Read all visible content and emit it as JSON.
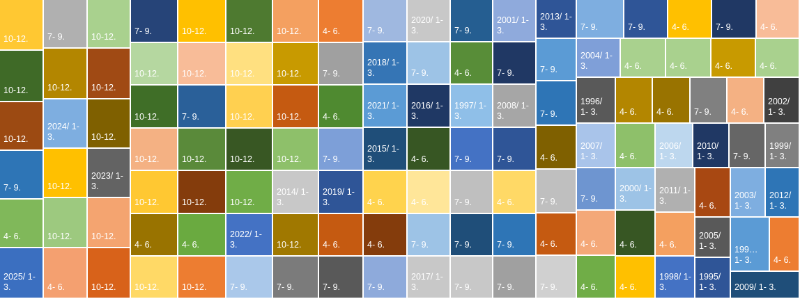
{
  "cells": [
    {
      "label": "10-12.",
      "color": "#ffc832"
    },
    {
      "label": "10-12.",
      "color": "#3f6a27"
    },
    {
      "label": "10-12.",
      "color": "#9c4a12"
    },
    {
      "label": "7- 9.",
      "color": "#2e75b6"
    },
    {
      "label": "4- 6.",
      "color": "#80b85a"
    },
    {
      "label": "2025/ 1- 3.",
      "color": "#3b6fc0"
    },
    {
      "label": "7- 9.",
      "color": "#b0b0b0"
    },
    {
      "label": "10-12.",
      "color": "#b38600"
    },
    {
      "label": "2024/ 1- 3.",
      "color": "#7eaee0"
    },
    {
      "label": "10-12.",
      "color": "#ffc000"
    },
    {
      "label": "10-12.",
      "color": "#9dc97f"
    },
    {
      "label": "4- 6.",
      "color": "#f4a070"
    },
    {
      "label": "10-12.",
      "color": "#a9d18e"
    },
    {
      "label": "10-12.",
      "color": "#a04a14"
    },
    {
      "label": "10-12.",
      "color": "#7f6000"
    },
    {
      "label": "2023/ 1- 3.",
      "color": "#636363"
    },
    {
      "label": "10-12.",
      "color": "#f4a470"
    },
    {
      "label": "10-12.",
      "color": "#d8621a"
    },
    {
      "label": "7- 9.",
      "color": "#264478"
    },
    {
      "label": "10-12.",
      "color": "#ffc000"
    },
    {
      "label": "10-12.",
      "color": "#4e7a30"
    },
    {
      "label": "10-12.",
      "color": "#f4a060"
    },
    {
      "label": "4- 6.",
      "color": "#ed7d31"
    },
    {
      "label": "10-12.",
      "color": "#b5d7a0"
    },
    {
      "label": "10-12.",
      "color": "#f8bc98"
    },
    {
      "label": "10-12.",
      "color": "#ffe080"
    },
    {
      "label": "10-12.",
      "color": "#c89a00"
    },
    {
      "label": "7- 9.",
      "color": "#a0a0a0"
    },
    {
      "label": "10-12.",
      "color": "#3f6e27"
    },
    {
      "label": "7- 9.",
      "color": "#2a6099"
    },
    {
      "label": "10-12.",
      "color": "#ffd050"
    },
    {
      "label": "10-12.",
      "color": "#c55a11"
    },
    {
      "label": "4- 6.",
      "color": "#4f8a30"
    },
    {
      "label": "10-12.",
      "color": "#f4b183"
    },
    {
      "label": "10-12.",
      "color": "#5a8a3a"
    },
    {
      "label": "10-12.",
      "color": "#385723"
    },
    {
      "label": "10-12.",
      "color": "#8ec06a"
    },
    {
      "label": "7- 9.",
      "color": "#7d9fd8"
    },
    {
      "label": "10-12.",
      "color": "#ffc832"
    },
    {
      "label": "10-12.",
      "color": "#843c0c"
    },
    {
      "label": "10-12.",
      "color": "#70ad47"
    },
    {
      "label": "2014/ 1- 3.",
      "color": "#c8c8c8"
    },
    {
      "label": "2019/ 1- 3.",
      "color": "#2f5597"
    },
    {
      "label": "4- 6.",
      "color": "#997300"
    },
    {
      "label": "4- 6.",
      "color": "#6aaa40"
    },
    {
      "label": "2022/ 1- 3.",
      "color": "#4472c4"
    },
    {
      "label": "10-12.",
      "color": "#a07800"
    },
    {
      "label": "4- 6.",
      "color": "#c55a11"
    },
    {
      "label": "10-12.",
      "color": "#ffd966"
    },
    {
      "label": "10-12.",
      "color": "#ed7d31"
    },
    {
      "label": "7- 9.",
      "color": "#aac8ea"
    },
    {
      "label": "7- 9.",
      "color": "#7b7b7b"
    },
    {
      "label": "7- 9.",
      "color": "#595959"
    },
    {
      "label": "7- 9.",
      "color": "#9fb8e0"
    },
    {
      "label": "2020/ 1- 3.",
      "color": "#c8c8c8"
    },
    {
      "label": "7- 9.",
      "color": "#255e91"
    },
    {
      "label": "2001/ 1- 3.",
      "color": "#8faadc"
    },
    {
      "label": "2018/ 1- 3.",
      "color": "#3575b5"
    },
    {
      "label": "7- 9.",
      "color": "#9dc3e6"
    },
    {
      "label": "4- 6.",
      "color": "#588d38"
    },
    {
      "label": "7- 9.",
      "color": "#203864"
    },
    {
      "label": "2021/ 1- 3.",
      "color": "#5b9bd5"
    },
    {
      "label": "2016/ 1- 3.",
      "color": "#1f3864"
    },
    {
      "label": "1997/ 1- 3.",
      "color": "#8fbfe8"
    },
    {
      "label": "2008/ 1- 3.",
      "color": "#a6a6a6"
    },
    {
      "label": "2015/ 1- 3.",
      "color": "#1f4e79"
    },
    {
      "label": "4- 6.",
      "color": "#375623"
    },
    {
      "label": "7- 9.",
      "color": "#4472c4"
    },
    {
      "label": "7- 9.",
      "color": "#2f5597"
    },
    {
      "label": "4- 6.",
      "color": "#ffd34d"
    },
    {
      "label": "4- 6.",
      "color": "#ffe699"
    },
    {
      "label": "7- 9.",
      "color": "#bfbfbf"
    },
    {
      "label": "4- 6.",
      "color": "#ffd966"
    },
    {
      "label": "4- 6.",
      "color": "#843c0c"
    },
    {
      "label": "7- 9.",
      "color": "#9dc3e6"
    },
    {
      "label": "7- 9.",
      "color": "#1f4e79"
    },
    {
      "label": "7- 9.",
      "color": "#2e75b6"
    },
    {
      "label": "7- 9.",
      "color": "#8eaadb"
    },
    {
      "label": "2017/ 1- 3.",
      "color": "#c8c8c8"
    },
    {
      "label": "7- 9.",
      "color": "#c8c8c8"
    },
    {
      "label": "7- 9.",
      "color": "#a0a0a0"
    },
    {
      "label": "2013/ 1- 3.",
      "color": "#2f5597"
    },
    {
      "label": "7- 9.",
      "color": "#5b9bd5"
    },
    {
      "label": "7- 9.",
      "color": "#2e75b6"
    },
    {
      "label": "4- 6.",
      "color": "#7f6000"
    },
    {
      "label": "7- 9.",
      "color": "#bfbfbf"
    },
    {
      "label": "4- 6.",
      "color": "#c55a11"
    },
    {
      "label": "7- 9.",
      "color": "#d0d0d0"
    },
    {
      "label": "7- 9.",
      "color": "#7eaee0"
    },
    {
      "label": "7- 9.",
      "color": "#2f5597"
    },
    {
      "label": "4- 6.",
      "color": "#ffc000"
    },
    {
      "label": "7- 9.",
      "color": "#203864"
    },
    {
      "label": "4- 6.",
      "color": "#f8bc98"
    },
    {
      "label": "2004/ 1- 3.",
      "color": "#7f9fd8"
    },
    {
      "label": "4- 6.",
      "color": "#a9d18e"
    },
    {
      "label": "4- 6.",
      "color": "#a9d18e"
    },
    {
      "label": "4- 6.",
      "color": "#c89a00"
    },
    {
      "label": "4- 6.",
      "color": "#a9d18e"
    },
    {
      "label": "1996/ 1- 3.",
      "color": "#595959"
    },
    {
      "label": "4- 6.",
      "color": "#b38600"
    },
    {
      "label": "4- 6.",
      "color": "#997300"
    },
    {
      "label": "7- 9.",
      "color": "#808080"
    },
    {
      "label": "4- 6.",
      "color": "#f4b183"
    },
    {
      "label": "2002/ 1- 3.",
      "color": "#404040"
    },
    {
      "label": "2007/ 1- 3.",
      "color": "#a9c4ea"
    },
    {
      "label": "4- 6.",
      "color": "#8ec06a"
    },
    {
      "label": "2006/ 1- 3.",
      "color": "#bdd7ee"
    },
    {
      "label": "2010/ 1- 3.",
      "color": "#203864"
    },
    {
      "label": "7- 9.",
      "color": "#666666"
    },
    {
      "label": "1999/ 1- 3.",
      "color": "#808080"
    },
    {
      "label": "7- 9.",
      "color": "#6e95d0"
    },
    {
      "label": "4- 6.",
      "color": "#f4a878"
    },
    {
      "label": "4- 6.",
      "color": "#70ad47"
    },
    {
      "label": "2000/ 1- 3.",
      "color": "#9dc3e6"
    },
    {
      "label": "4- 6.",
      "color": "#375623"
    },
    {
      "label": "4- 6.",
      "color": "#ffc000"
    },
    {
      "label": "2011/ 1- 3.",
      "color": "#b0b0b0"
    },
    {
      "label": "4- 6.",
      "color": "#f4a060"
    },
    {
      "label": "1998/ 1- 3.",
      "color": "#4472c4"
    },
    {
      "label": "4- 6.",
      "color": "#a84812"
    },
    {
      "label": "2005/ 1- 3.",
      "color": "#595959"
    },
    {
      "label": "1995/ 1- 3.",
      "color": "#2f5597"
    },
    {
      "label": "2003/ 1- 3.",
      "color": "#7eaee0"
    },
    {
      "label": "2012/ 1- 3.",
      "color": "#2e75b6"
    },
    {
      "label": "199… 1- 3.",
      "color": "#5b9bd5"
    },
    {
      "label": "4- 6.",
      "color": "#ed7d31"
    },
    {
      "label": "2009/ 1- 3.",
      "color": "#1f4e79"
    }
  ]
}
